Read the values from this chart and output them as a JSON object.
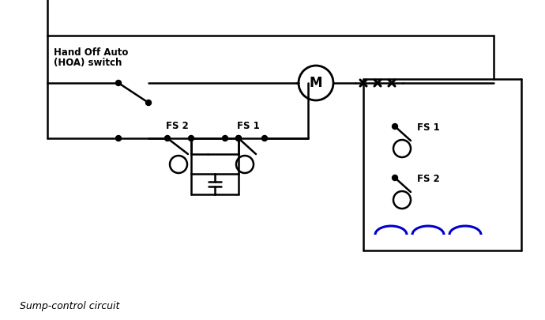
{
  "caption": "Sump-control circuit",
  "bg_color": "#ffffff",
  "line_color": "#000000",
  "wave_color": "#0000cc",
  "figsize": [
    6.9,
    4.05
  ],
  "dpi": 100,
  "hoa_label1": "Hand Off Auto",
  "hoa_label2": "(HOA) switch",
  "motor_label": "M",
  "fs1_label": "FS 1",
  "fs2_label": "FS 2"
}
